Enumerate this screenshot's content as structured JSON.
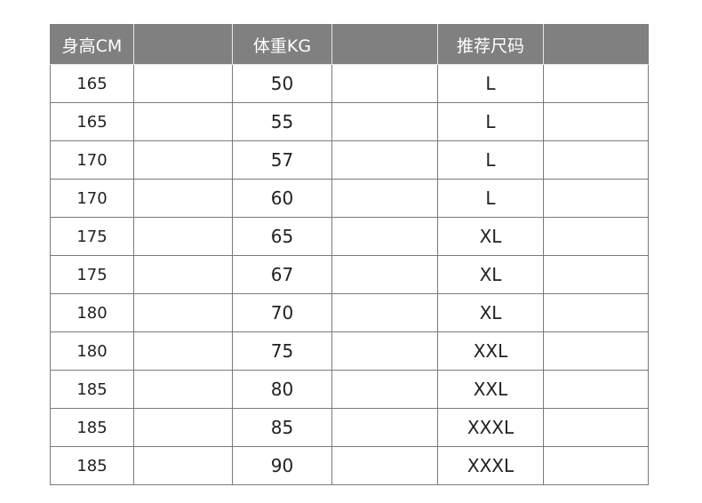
{
  "headers": [
    "身高CM",
    "",
    "体重KG",
    "",
    "推荐尺码",
    ""
  ],
  "rows": [
    {
      "height": "165",
      "weight": "50",
      "size": "L"
    },
    {
      "height": "165",
      "weight": "55",
      "size": "L"
    },
    {
      "height": "170",
      "weight": "57",
      "size": "L"
    },
    {
      "height": "170",
      "weight": "60",
      "size": "L"
    },
    {
      "height": "175",
      "weight": "65",
      "size": "XL"
    },
    {
      "height": "175",
      "weight": "67",
      "size": "XL"
    },
    {
      "height": "180",
      "weight": "70",
      "size": "XL"
    },
    {
      "height": "180",
      "weight": "75",
      "size": "XXL"
    },
    {
      "height": "185",
      "weight": "80",
      "size": "XXL"
    },
    {
      "height": "185",
      "weight": "85",
      "size": "XXXL"
    },
    {
      "height": "185",
      "weight": "90",
      "size": "XXXL"
    }
  ],
  "colors": {
    "header_bg": "#808080",
    "header_text": "#ffffff",
    "grid": "#7a7a7a"
  }
}
